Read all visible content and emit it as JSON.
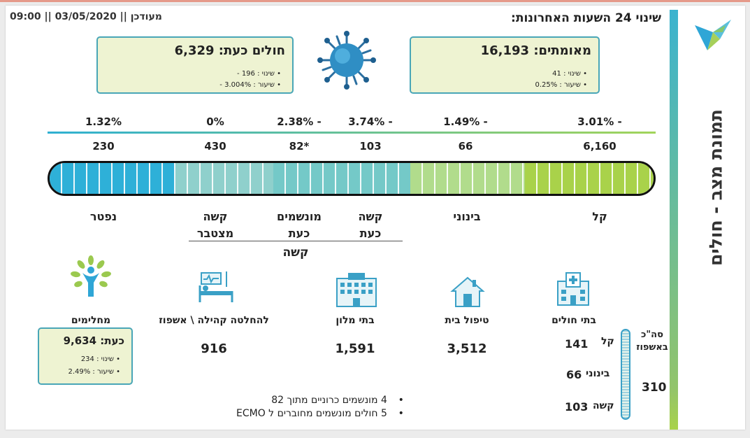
{
  "header": {
    "title": "שינוי 24 השעות האחרונות:",
    "updated": "מעודכן || 03/05/2020 || 09:00"
  },
  "side_title": "תמונת מצב - חולים",
  "confirmed": {
    "main": "מאומתים: 16,193",
    "change": "שינוי : 41",
    "rate": "שיעור : 0.25%"
  },
  "sick_now": {
    "main": "חולים כעת: 6,329",
    "change": "שינוי : 196 -",
    "rate": "שיעור : 3.004% -"
  },
  "recovered": {
    "label": "מחלימים",
    "main": "כעת: 9,634",
    "change": "שינוי : 234",
    "rate": "שיעור : 2.49%"
  },
  "scale": {
    "percentages": [
      "3.01% -",
      "1.49% -",
      "3.74% -",
      "2.38% -",
      "0%",
      "1.32%"
    ],
    "values": [
      "6,160",
      "66",
      "103",
      "82*",
      "430",
      "230"
    ],
    "labels": {
      "mild": "קל",
      "moderate": "בינוני",
      "severe_now": "קשה כעת",
      "ventilated_now": "מונשמים כעת",
      "severe_cumulative": "קשה מצטבר",
      "deceased": "נפטר"
    },
    "group_label": "קשה",
    "colors": {
      "mild": "#a9d24a",
      "moderate": "#aedb86",
      "severe": "#7fcfc5",
      "cumulative": "#9ad4cf",
      "deceased": "#2eb0d8"
    }
  },
  "categories": {
    "hospitals": {
      "label": "בתי חולים"
    },
    "home_care": {
      "label": "טיפול בית",
      "value": "3,512"
    },
    "hotels": {
      "label": "בתי מלון",
      "value": "1,591"
    },
    "community": {
      "label": "להחלטה קהילה \\ אשפוז",
      "value": "916"
    }
  },
  "hospital_breakdown": {
    "total_label": "סה\"כ באשפוז",
    "total": "310",
    "mild_label": "קל",
    "mild": "141",
    "moderate_label": "בינוני",
    "moderate": "66",
    "severe_label": "קשה",
    "severe": "103"
  },
  "notes": [
    "4 מונשמים כרוניים מתוך 82",
    "5 חולים מונשמים מחוברים ל ECMO"
  ]
}
